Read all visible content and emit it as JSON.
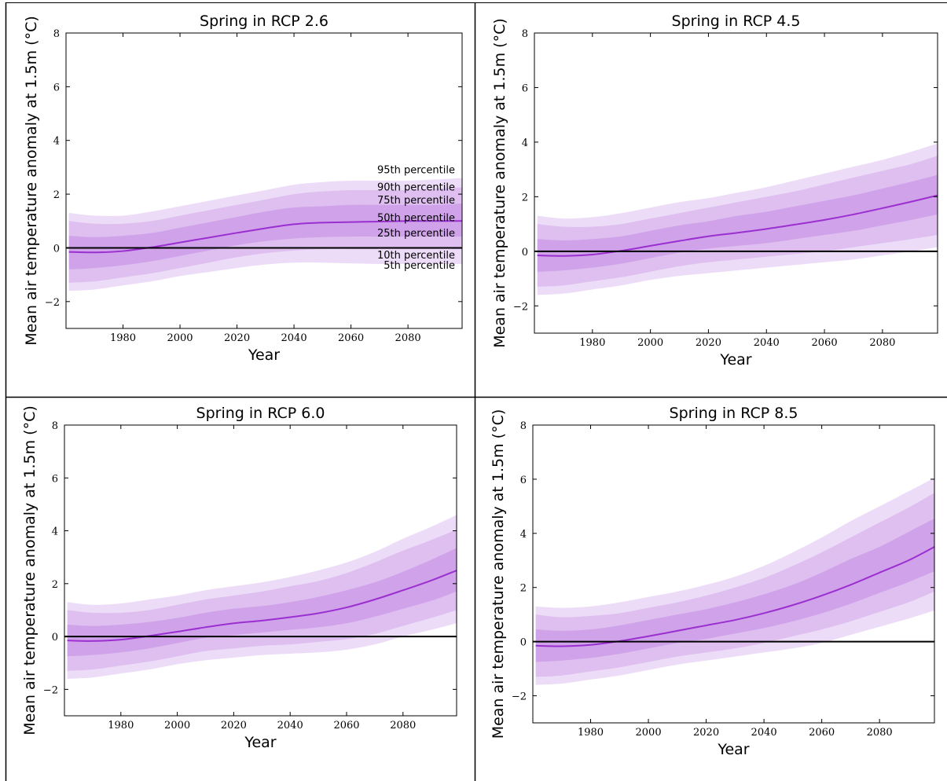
{
  "chart_data": [
    {
      "type": "area",
      "title": "Spring in RCP 2.6",
      "xlabel": "Year",
      "ylabel": "Mean air temperature anomaly at 1.5m (°C)",
      "xlim": [
        1960,
        2099
      ],
      "ylim": [
        -3,
        8
      ],
      "xticks": [
        1980,
        2000,
        2020,
        2040,
        2060,
        2080
      ],
      "yticks": [
        -2,
        0,
        2,
        4,
        6,
        8
      ],
      "band_color": "#9b3bd4",
      "median_color": "#9b2fd0",
      "x": [
        1961,
        1970,
        1980,
        1990,
        2000,
        2010,
        2020,
        2030,
        2040,
        2050,
        2060,
        2070,
        2080,
        2090,
        2099
      ],
      "series": [
        {
          "name": "95th percentile",
          "values": [
            1.3,
            1.2,
            1.2,
            1.35,
            1.55,
            1.75,
            1.95,
            2.15,
            2.35,
            2.45,
            2.5,
            2.5,
            2.5,
            2.55,
            2.6
          ]
        },
        {
          "name": "90th percentile",
          "values": [
            1.0,
            0.9,
            0.9,
            1.0,
            1.2,
            1.4,
            1.6,
            1.8,
            2.0,
            2.1,
            2.15,
            2.15,
            2.15,
            2.2,
            2.25
          ]
        },
        {
          "name": "75th percentile",
          "values": [
            0.45,
            0.4,
            0.45,
            0.55,
            0.75,
            0.95,
            1.15,
            1.35,
            1.5,
            1.55,
            1.6,
            1.6,
            1.6,
            1.6,
            1.65
          ]
        },
        {
          "name": "50th percentile",
          "values": [
            -0.15,
            -0.17,
            -0.12,
            0.02,
            0.2,
            0.38,
            0.56,
            0.73,
            0.88,
            0.94,
            0.96,
            0.98,
            1.0,
            1.0,
            1.0
          ]
        },
        {
          "name": "25th percentile",
          "values": [
            -0.8,
            -0.75,
            -0.65,
            -0.5,
            -0.3,
            -0.1,
            0.1,
            0.25,
            0.35,
            0.4,
            0.42,
            0.42,
            0.42,
            0.42,
            0.42
          ]
        },
        {
          "name": "10th percentile",
          "values": [
            -1.3,
            -1.25,
            -1.1,
            -0.95,
            -0.75,
            -0.55,
            -0.35,
            -0.2,
            -0.1,
            -0.05,
            -0.05,
            -0.05,
            -0.05,
            -0.05,
            -0.05
          ]
        },
        {
          "name": "5th percentile",
          "values": [
            -1.6,
            -1.55,
            -1.4,
            -1.25,
            -1.05,
            -0.9,
            -0.75,
            -0.62,
            -0.55,
            -0.55,
            -0.58,
            -0.6,
            -0.6,
            -0.6,
            -0.6
          ]
        }
      ]
    },
    {
      "type": "area",
      "title": "Spring in RCP 4.5",
      "xlabel": "Year",
      "ylabel": "Mean air temperature anomaly at 1.5m (°C)",
      "xlim": [
        1960,
        2099
      ],
      "ylim": [
        -3,
        8
      ],
      "xticks": [
        1980,
        2000,
        2020,
        2040,
        2060,
        2080
      ],
      "yticks": [
        -2,
        0,
        2,
        4,
        6,
        8
      ],
      "band_color": "#9b3bd4",
      "median_color": "#9b2fd0",
      "x": [
        1961,
        1970,
        1980,
        1990,
        2000,
        2010,
        2020,
        2030,
        2040,
        2050,
        2060,
        2070,
        2080,
        2090,
        2099
      ],
      "series": [
        {
          "values": [
            1.3,
            1.2,
            1.25,
            1.4,
            1.6,
            1.8,
            1.95,
            2.15,
            2.35,
            2.6,
            2.85,
            3.1,
            3.35,
            3.65,
            3.95
          ]
        },
        {
          "values": [
            1.0,
            0.9,
            0.9,
            1.0,
            1.2,
            1.4,
            1.6,
            1.8,
            2.0,
            2.2,
            2.45,
            2.7,
            2.95,
            3.2,
            3.5
          ]
        },
        {
          "values": [
            0.45,
            0.4,
            0.45,
            0.55,
            0.75,
            0.95,
            1.1,
            1.3,
            1.45,
            1.65,
            1.85,
            2.05,
            2.3,
            2.55,
            2.8
          ]
        },
        {
          "values": [
            -0.15,
            -0.17,
            -0.12,
            0.02,
            0.2,
            0.38,
            0.55,
            0.68,
            0.82,
            0.98,
            1.15,
            1.35,
            1.58,
            1.82,
            2.05
          ]
        },
        {
          "values": [
            -0.75,
            -0.7,
            -0.6,
            -0.45,
            -0.25,
            -0.05,
            0.1,
            0.2,
            0.3,
            0.45,
            0.6,
            0.75,
            0.95,
            1.15,
            1.35
          ]
        },
        {
          "values": [
            -1.3,
            -1.25,
            -1.1,
            -0.95,
            -0.75,
            -0.55,
            -0.4,
            -0.3,
            -0.2,
            -0.1,
            0.0,
            0.15,
            0.3,
            0.45,
            0.6
          ]
        },
        {
          "values": [
            -1.6,
            -1.55,
            -1.4,
            -1.25,
            -1.05,
            -0.9,
            -0.8,
            -0.7,
            -0.6,
            -0.5,
            -0.4,
            -0.3,
            -0.15,
            0.0,
            0.15
          ]
        }
      ]
    },
    {
      "type": "area",
      "title": "Spring in RCP 6.0",
      "xlabel": "Year",
      "ylabel": "Mean air temperature anomaly at 1.5m (°C)",
      "xlim": [
        1960,
        2099
      ],
      "ylim": [
        -3,
        8
      ],
      "xticks": [
        1980,
        2000,
        2020,
        2040,
        2060,
        2080
      ],
      "yticks": [
        -2,
        0,
        2,
        4,
        6,
        8
      ],
      "band_color": "#9b3bd4",
      "median_color": "#9b2fd0",
      "x": [
        1961,
        1970,
        1980,
        1990,
        2000,
        2010,
        2020,
        2030,
        2040,
        2050,
        2060,
        2070,
        2080,
        2090,
        2099
      ],
      "series": [
        {
          "values": [
            1.3,
            1.2,
            1.25,
            1.4,
            1.55,
            1.75,
            1.9,
            2.05,
            2.25,
            2.5,
            2.8,
            3.2,
            3.7,
            4.15,
            4.6
          ]
        },
        {
          "values": [
            1.0,
            0.9,
            0.9,
            1.0,
            1.2,
            1.4,
            1.55,
            1.7,
            1.9,
            2.1,
            2.4,
            2.8,
            3.25,
            3.65,
            4.05
          ]
        },
        {
          "values": [
            0.45,
            0.4,
            0.45,
            0.55,
            0.7,
            0.9,
            1.05,
            1.15,
            1.3,
            1.5,
            1.75,
            2.05,
            2.45,
            2.9,
            3.35
          ]
        },
        {
          "values": [
            -0.15,
            -0.17,
            -0.12,
            0.02,
            0.18,
            0.35,
            0.5,
            0.6,
            0.73,
            0.88,
            1.1,
            1.4,
            1.75,
            2.12,
            2.5
          ]
        },
        {
          "values": [
            -0.75,
            -0.7,
            -0.6,
            -0.45,
            -0.25,
            -0.05,
            0.05,
            0.15,
            0.25,
            0.35,
            0.5,
            0.75,
            1.05,
            1.35,
            1.7
          ]
        },
        {
          "values": [
            -1.3,
            -1.25,
            -1.1,
            -0.95,
            -0.75,
            -0.55,
            -0.45,
            -0.35,
            -0.3,
            -0.2,
            -0.1,
            0.1,
            0.4,
            0.7,
            1.0
          ]
        },
        {
          "values": [
            -1.6,
            -1.55,
            -1.4,
            -1.25,
            -1.05,
            -0.9,
            -0.8,
            -0.7,
            -0.65,
            -0.6,
            -0.5,
            -0.3,
            0.0,
            0.25,
            0.5
          ]
        }
      ]
    },
    {
      "type": "area",
      "title": "Spring in RCP 8.5",
      "xlabel": "Year",
      "ylabel": "Mean air temperature anomaly at 1.5m (°C)",
      "xlim": [
        1960,
        2099
      ],
      "ylim": [
        -3,
        8
      ],
      "xticks": [
        1980,
        2000,
        2020,
        2040,
        2060,
        2080
      ],
      "yticks": [
        -2,
        0,
        2,
        4,
        6,
        8
      ],
      "band_color": "#9b3bd4",
      "median_color": "#9b2fd0",
      "x": [
        1961,
        1970,
        1980,
        1990,
        2000,
        2010,
        2020,
        2030,
        2040,
        2050,
        2060,
        2070,
        2080,
        2090,
        2099
      ],
      "series": [
        {
          "values": [
            1.3,
            1.25,
            1.3,
            1.45,
            1.65,
            1.85,
            2.1,
            2.4,
            2.8,
            3.3,
            3.85,
            4.45,
            5.0,
            5.55,
            6.05
          ]
        },
        {
          "values": [
            1.0,
            0.9,
            0.95,
            1.05,
            1.25,
            1.45,
            1.7,
            2.0,
            2.35,
            2.8,
            3.3,
            3.85,
            4.4,
            4.95,
            5.5
          ]
        },
        {
          "values": [
            0.45,
            0.4,
            0.45,
            0.6,
            0.8,
            1.0,
            1.2,
            1.45,
            1.75,
            2.1,
            2.55,
            3.05,
            3.5,
            4.05,
            4.55
          ]
        },
        {
          "values": [
            -0.15,
            -0.17,
            -0.12,
            0.02,
            0.2,
            0.4,
            0.6,
            0.8,
            1.05,
            1.35,
            1.7,
            2.1,
            2.55,
            3.0,
            3.5
          ]
        },
        {
          "values": [
            -0.75,
            -0.7,
            -0.6,
            -0.45,
            -0.25,
            -0.05,
            0.1,
            0.3,
            0.5,
            0.75,
            1.05,
            1.4,
            1.8,
            2.2,
            2.6
          ]
        },
        {
          "values": [
            -1.3,
            -1.25,
            -1.1,
            -0.95,
            -0.75,
            -0.55,
            -0.4,
            -0.25,
            -0.05,
            0.2,
            0.45,
            0.75,
            1.1,
            1.45,
            1.85
          ]
        },
        {
          "values": [
            -1.6,
            -1.55,
            -1.4,
            -1.25,
            -1.05,
            -0.85,
            -0.7,
            -0.55,
            -0.4,
            -0.25,
            -0.05,
            0.25,
            0.55,
            0.85,
            1.15
          ]
        }
      ]
    }
  ]
}
